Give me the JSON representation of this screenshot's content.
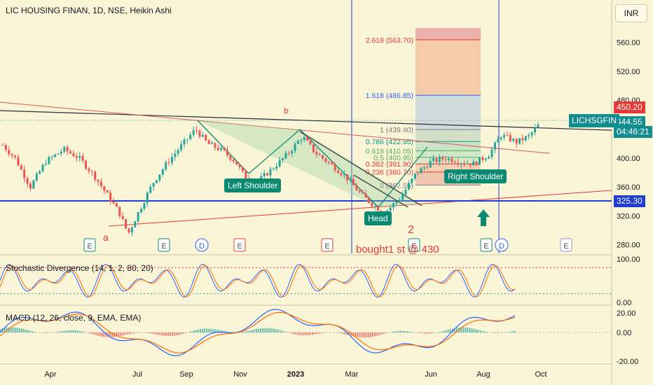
{
  "header": {
    "title": "LIC HOUSING FINAN, 1D, NSE, Heikin Ashi",
    "currency": "INR"
  },
  "price_scale": {
    "current_price": "444.55",
    "countdown": "04:46:21",
    "symbol": "LICHSGFIN",
    "high_marker": "450.20",
    "support_marker": "325.30"
  },
  "indicators": {
    "stoch": "Stochastic Divergence (14, 1, 2, 80, 20)",
    "macd": "MACD (12, 26, close, 9, EMA, EMA)"
  },
  "annotations": {
    "left_shoulder": "Left Shoulder",
    "head": "Head",
    "right_shoulder": "Right Shoulder",
    "point_a": "a",
    "point_b": "b",
    "point_2": "2",
    "note": "bought1 st @ 430"
  },
  "fib_levels": [
    {
      "label": "2.618 (563.70)",
      "value": 563.7,
      "color": "#e53935"
    },
    {
      "label": "1.618 (486.85)",
      "value": 486.85,
      "color": "#2962ff"
    },
    {
      "label": "1 (439.40)",
      "value": 439.4,
      "color": "#787b86"
    },
    {
      "label": "0.786 (422.95)",
      "value": 422.95,
      "color": "#089981"
    },
    {
      "label": "0.618 (410.05)",
      "value": 410.05,
      "color": "#4caf50"
    },
    {
      "label": "0.5 (400.95)",
      "value": 400.95,
      "color": "#4caf50"
    },
    {
      "label": "0.382 (391.90)",
      "value": 391.9,
      "color": "#e53935"
    },
    {
      "label": "0.236 (380.70)",
      "value": 380.7,
      "color": "#e53935"
    },
    {
      "label": "0 (362.55)",
      "value": 362.55,
      "color": "#787b86"
    }
  ],
  "chart_data": {
    "type": "candlestick",
    "title": "LIC HOUSING FINAN, 1D, NSE, Heikin Ashi",
    "x_ticks": [
      "Apr",
      "Jul",
      "Sep",
      "Nov",
      "2023",
      "Mar",
      "Jun",
      "Aug",
      "Oct"
    ],
    "y_ticks": [
      "560.00",
      "520.00",
      "480.00",
      "440.00",
      "400.00",
      "360.00",
      "320.00",
      "280.00"
    ],
    "ylim": [
      268,
      580
    ],
    "osc_ticks": [
      "100.00",
      "0.00"
    ],
    "macd_ticks": [
      "20.00",
      "0.00",
      "-20.00"
    ],
    "price_path": [
      {
        "t": 0,
        "p": 418
      },
      {
        "t": 0.02,
        "p": 400
      },
      {
        "t": 0.045,
        "p": 360
      },
      {
        "t": 0.07,
        "p": 395
      },
      {
        "t": 0.1,
        "p": 412
      },
      {
        "t": 0.125,
        "p": 400
      },
      {
        "t": 0.15,
        "p": 375
      },
      {
        "t": 0.17,
        "p": 350
      },
      {
        "t": 0.19,
        "p": 325
      },
      {
        "t": 0.205,
        "p": 295
      },
      {
        "t": 0.22,
        "p": 322
      },
      {
        "t": 0.245,
        "p": 365
      },
      {
        "t": 0.27,
        "p": 395
      },
      {
        "t": 0.29,
        "p": 415
      },
      {
        "t": 0.315,
        "p": 440
      },
      {
        "t": 0.335,
        "p": 420
      },
      {
        "t": 0.36,
        "p": 410
      },
      {
        "t": 0.38,
        "p": 395
      },
      {
        "t": 0.395,
        "p": 375
      },
      {
        "t": 0.415,
        "p": 366
      },
      {
        "t": 0.44,
        "p": 385
      },
      {
        "t": 0.465,
        "p": 405
      },
      {
        "t": 0.49,
        "p": 430
      },
      {
        "t": 0.51,
        "p": 408
      },
      {
        "t": 0.535,
        "p": 392
      },
      {
        "t": 0.56,
        "p": 375
      },
      {
        "t": 0.585,
        "p": 350
      },
      {
        "t": 0.61,
        "p": 332
      },
      {
        "t": 0.625,
        "p": 325
      },
      {
        "t": 0.65,
        "p": 345
      },
      {
        "t": 0.675,
        "p": 378
      },
      {
        "t": 0.7,
        "p": 395
      },
      {
        "t": 0.725,
        "p": 400
      },
      {
        "t": 0.745,
        "p": 395
      },
      {
        "t": 0.77,
        "p": 392
      },
      {
        "t": 0.795,
        "p": 405
      },
      {
        "t": 0.815,
        "p": 432
      },
      {
        "t": 0.84,
        "p": 422
      },
      {
        "t": 0.86,
        "p": 430
      },
      {
        "t": 0.875,
        "p": 445
      }
    ]
  }
}
